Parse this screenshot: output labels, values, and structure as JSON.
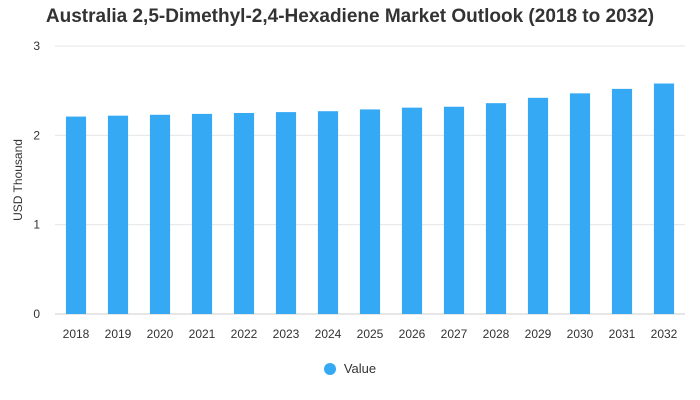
{
  "chart_data": {
    "type": "bar",
    "title": "Australia 2,5-Dimethyl-2,4-Hexadiene Market Outlook (2018 to 2032)",
    "xlabel": "",
    "ylabel": "USD Thousand",
    "categories": [
      "2018",
      "2019",
      "2020",
      "2021",
      "2022",
      "2023",
      "2024",
      "2025",
      "2026",
      "2027",
      "2028",
      "2029",
      "2030",
      "2031",
      "2032"
    ],
    "series": [
      {
        "name": "Value",
        "color": "#36a9f5",
        "values": [
          2.21,
          2.22,
          2.23,
          2.24,
          2.25,
          2.26,
          2.27,
          2.29,
          2.31,
          2.32,
          2.36,
          2.42,
          2.47,
          2.52,
          2.58
        ]
      }
    ],
    "ylim": [
      0,
      3
    ],
    "yticks": [
      "0",
      "1",
      "2",
      "3"
    ],
    "grid": true,
    "legend": "bottom"
  }
}
